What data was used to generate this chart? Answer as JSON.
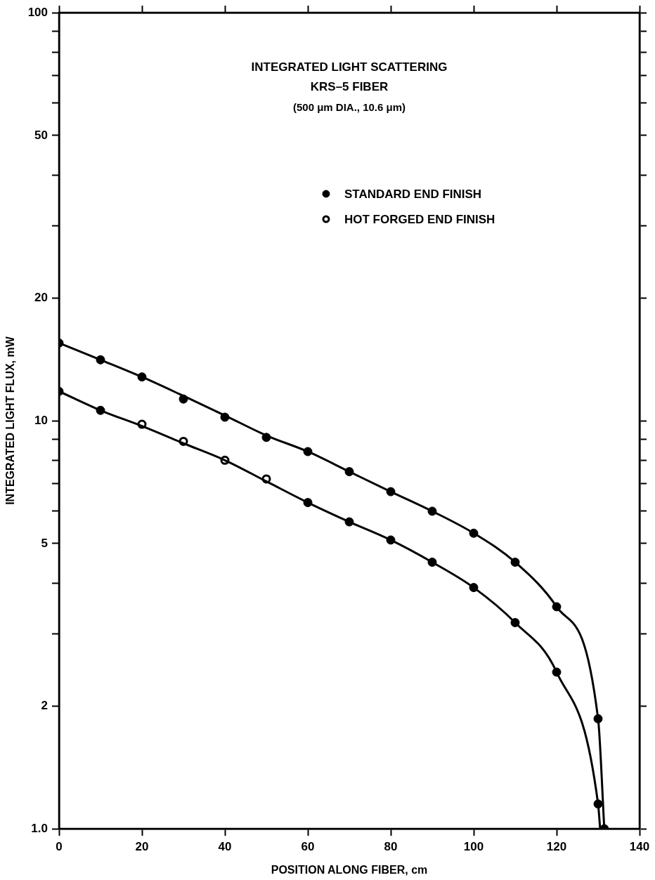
{
  "chart_data": {
    "type": "line",
    "title": "INTEGRATED LIGHT SCATTERING",
    "subtitle": "KRS–5 FIBER",
    "annotations": [
      "(500 μm DIA., 10.6 μm)"
    ],
    "xlabel": "POSITION ALONG FIBER, cm",
    "ylabel": "INTEGRATED LIGHT FLUX, mW",
    "series": [
      {
        "type": "line",
        "marker": "none",
        "color": "#000000",
        "x": [
          0,
          10,
          20,
          30,
          40,
          50,
          60,
          70,
          80,
          90,
          100,
          110,
          120,
          130,
          131.5
        ],
        "values": [
          15.5,
          14.1,
          12.8,
          11.5,
          10.3,
          9.2,
          8.4,
          7.5,
          6.7,
          6.0,
          5.3,
          4.5,
          3.5,
          1.86,
          1.0
        ]
      },
      {
        "type": "line",
        "marker": "none",
        "color": "#000000",
        "x": [
          0,
          10,
          20,
          30,
          40,
          50,
          60,
          70,
          80,
          90,
          100,
          110,
          120,
          130,
          130.5
        ],
        "values": [
          11.8,
          10.6,
          9.7,
          8.8,
          8.0,
          7.1,
          6.3,
          5.65,
          5.1,
          4.5,
          3.9,
          3.2,
          2.42,
          1.15,
          1.0
        ]
      },
      {
        "type": "scatter",
        "name": "STANDARD END FINISH",
        "color": "#000000",
        "x": [
          0,
          10,
          20,
          30,
          40,
          50,
          60,
          70,
          80,
          90,
          100,
          110,
          120,
          130,
          131.5,
          0,
          10,
          60,
          70,
          80,
          90,
          100,
          110,
          120,
          130
        ],
        "values": [
          15.5,
          14.1,
          12.8,
          11.3,
          10.2,
          9.1,
          8.4,
          7.5,
          6.7,
          6.0,
          5.3,
          4.5,
          3.5,
          1.86,
          1.0,
          11.8,
          10.6,
          6.3,
          5.65,
          5.1,
          4.5,
          3.9,
          3.2,
          2.42,
          1.15
        ]
      },
      {
        "type": "scatter",
        "name": "HOT FORGED END FINISH",
        "color": "#000000",
        "marker": "circle-open",
        "x": [
          20,
          30,
          40,
          50
        ],
        "values": [
          9.8,
          8.9,
          8.0,
          7.2
        ]
      }
    ],
    "xlim": [
      0,
      140
    ],
    "xticks": [
      0,
      20,
      40,
      60,
      80,
      100,
      120,
      140
    ],
    "ylim": [
      1,
      100
    ],
    "yticks": [
      {
        "value": 1,
        "label": "1.0"
      },
      2,
      {
        "value": 3,
        "label": null
      },
      {
        "value": 4,
        "label": null
      },
      5,
      {
        "value": 6,
        "label": null
      },
      {
        "value": 7,
        "label": null
      },
      {
        "value": 8,
        "label": null
      },
      {
        "value": 9,
        "label": null
      },
      10,
      20,
      {
        "value": 30,
        "label": null
      },
      {
        "value": 40,
        "label": null
      },
      50,
      {
        "value": 60,
        "label": null
      },
      {
        "value": 70,
        "label": null
      },
      {
        "value": 80,
        "label": null
      },
      {
        "value": 90,
        "label": null
      },
      100
    ],
    "log": "y",
    "grid": false,
    "legend": "top right",
    "marker": "circle"
  }
}
